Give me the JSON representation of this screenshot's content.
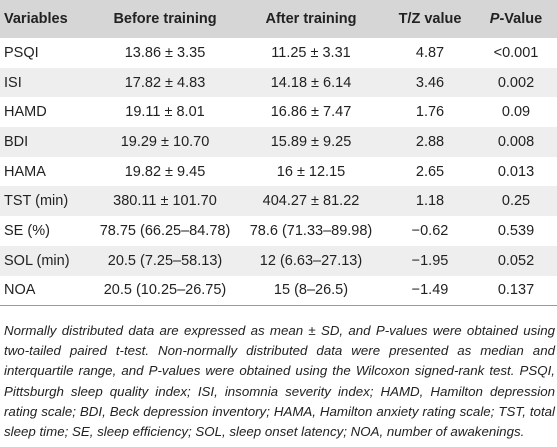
{
  "table": {
    "headers": {
      "variables": "Variables",
      "before": "Before training",
      "after": "After training",
      "tz": "T/Z value",
      "p_prefix": "P",
      "p_suffix": "-Value"
    },
    "rows": [
      {
        "variable": "PSQI",
        "before": "13.86 ± 3.35",
        "after": "11.25 ± 3.31",
        "tz": "4.87",
        "p": "<0.001"
      },
      {
        "variable": "ISI",
        "before": "17.82 ± 4.83",
        "after": "14.18 ± 6.14",
        "tz": "3.46",
        "p": "0.002"
      },
      {
        "variable": "HAMD",
        "before": "19.11 ± 8.01",
        "after": "16.86 ± 7.47",
        "tz": "1.76",
        "p": "0.09"
      },
      {
        "variable": "BDI",
        "before": "19.29 ± 10.70",
        "after": "15.89 ± 9.25",
        "tz": "2.88",
        "p": "0.008"
      },
      {
        "variable": "HAMA",
        "before": "19.82 ± 9.45",
        "after": "16 ± 12.15",
        "tz": "2.65",
        "p": "0.013"
      },
      {
        "variable": "TST (min)",
        "before": "380.11 ± 101.70",
        "after": "404.27 ± 81.22",
        "tz": "1.18",
        "p": "0.25"
      },
      {
        "variable": "SE (%)",
        "before": "78.75 (66.25–84.78)",
        "after": "78.6 (71.33–89.98)",
        "tz": "−0.62",
        "p": "0.539"
      },
      {
        "variable": "SOL (min)",
        "before": "20.5 (7.25–58.13)",
        "after": "12 (6.63–27.13)",
        "tz": "−1.95",
        "p": "0.052"
      },
      {
        "variable": "NOA",
        "before": "20.5 (10.25–26.75)",
        "after": "15 (8–26.5)",
        "tz": "−1.49",
        "p": "0.137"
      }
    ]
  },
  "footnote": "Normally distributed data are expressed as mean ± SD, and P-values were obtained using two-tailed paired t-test. Non-normally distributed data were presented as median and interquartile range, and P-values were obtained using the Wilcoxon signed-rank test. PSQI, Pittsburgh sleep quality index; ISI, insomnia severity index; HAMD, Hamilton depression rating scale; BDI, Beck depression inventory; HAMA, Hamilton anxiety rating scale; TST, total sleep time; SE, sleep efficiency; SOL, sleep onset latency; NOA, number of awakenings."
}
